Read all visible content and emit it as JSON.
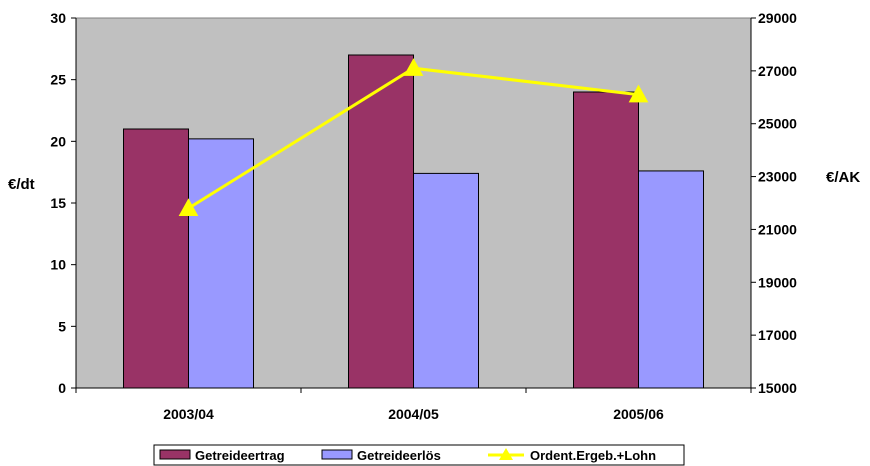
{
  "chart_data": {
    "type": "bar",
    "categories": [
      "2003/04",
      "2004/05",
      "2005/06"
    ],
    "series": [
      {
        "name": "Getreideertrag",
        "type": "bar",
        "axis": "left",
        "color": "#993366",
        "values": [
          21,
          27,
          24
        ]
      },
      {
        "name": "Getreideerlös",
        "type": "bar",
        "axis": "left",
        "color": "#9999ff",
        "values": [
          20.2,
          17.4,
          17.6
        ]
      },
      {
        "name": "Ordent.Ergeb.+Lohn",
        "type": "line",
        "axis": "right",
        "color": "#ffff00",
        "values": [
          21800,
          27100,
          26100
        ]
      }
    ],
    "ylabel": "€/dt",
    "y2label": "€/AK",
    "ylim": [
      0,
      30
    ],
    "y2lim": [
      15000,
      29000
    ],
    "yticks": [
      "0",
      "5",
      "10",
      "15",
      "20",
      "25",
      "30"
    ],
    "y2ticks": [
      "15000",
      "17000",
      "19000",
      "21000",
      "23000",
      "25000",
      "27000",
      "29000"
    ],
    "plot_background": "#c0c0c0",
    "grid": false,
    "legend_position": "bottom"
  }
}
